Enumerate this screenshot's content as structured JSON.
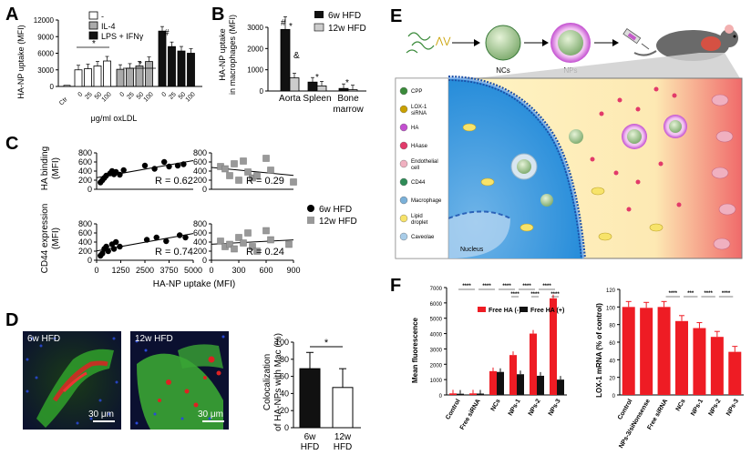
{
  "panels": {
    "A": {
      "label": "A"
    },
    "B": {
      "label": "B"
    },
    "C": {
      "label": "C"
    },
    "D": {
      "label": "D"
    },
    "E": {
      "label": "E"
    },
    "F": {
      "label": "F"
    }
  },
  "chart_data": [
    {
      "id": "A",
      "type": "bar",
      "ylabel": "HA-NP uptake (MFI)",
      "xlabel": "μg/ml oxLDL",
      "ylim": [
        0,
        12000
      ],
      "yticks": [
        "0",
        "3000",
        "6000",
        "9000",
        "12000"
      ],
      "ctr_label": "Ctr",
      "groups": [
        {
          "name": "-",
          "color": "#ffffff",
          "x": [
            "0",
            "25",
            "50",
            "100"
          ],
          "values": [
            3000,
            3200,
            3700,
            4600
          ]
        },
        {
          "name": "IL-4",
          "color": "#aaaaaa",
          "x": [
            "0",
            "25",
            "50",
            "100"
          ],
          "values": [
            3100,
            3300,
            3700,
            4500
          ]
        },
        {
          "name": "LPS + IFNγ",
          "color": "#111111",
          "x": [
            "0",
            "25",
            "50",
            "100"
          ],
          "values": [
            10000,
            7200,
            6400,
            6000
          ]
        }
      ],
      "ctr_value": 200,
      "annotations": [
        "*",
        "*",
        "#"
      ]
    },
    {
      "id": "B",
      "type": "bar",
      "ylabel": "HA-NP uptake in macrophages (MFI)",
      "ylim": [
        0,
        3000
      ],
      "yticks": [
        "0",
        "1000",
        "2000",
        "3000"
      ],
      "categories": [
        "Aorta",
        "Spleen",
        "Bone marrow"
      ],
      "series": [
        {
          "name": "6w HFD",
          "color": "#111111",
          "values": [
            2900,
            420,
            120
          ]
        },
        {
          "name": "12w HFD",
          "color": "#cccccc",
          "values": [
            620,
            240,
            60
          ]
        }
      ],
      "annotations": [
        "#",
        "*",
        "&",
        "*",
        "*"
      ]
    },
    {
      "id": "C",
      "type": "scatter",
      "ylabels": [
        "HA binding (MFI)",
        "CD44 expression (MFI)"
      ],
      "xlabel": "HA-NP uptake (MFI)",
      "yticks": [
        "0",
        "200",
        "400",
        "600",
        "800"
      ],
      "xticks_6w": [
        "0",
        "1250",
        "2500",
        "3750",
        "5000"
      ],
      "xticks_12w": [
        "0",
        "300",
        "600",
        "900"
      ],
      "series": [
        {
          "name": "6w HFD",
          "marker": "circle",
          "color": "#000000"
        },
        {
          "name": "12w HFD",
          "marker": "square",
          "color": "#999999"
        }
      ],
      "r_values": [
        "R = 0.62",
        "R = 0.29",
        "R = 0.74",
        "R = 0.24"
      ],
      "points_6w_top": [
        [
          200,
          150
        ],
        [
          300,
          200
        ],
        [
          400,
          250
        ],
        [
          500,
          300
        ],
        [
          700,
          350
        ],
        [
          800,
          400
        ],
        [
          900,
          330
        ],
        [
          1000,
          380
        ],
        [
          1200,
          320
        ],
        [
          1400,
          420
        ],
        [
          2500,
          520
        ],
        [
          3000,
          450
        ],
        [
          3500,
          600
        ],
        [
          3750,
          500
        ],
        [
          4200,
          520
        ],
        [
          4500,
          550
        ]
      ],
      "points_12w_top": [
        [
          100,
          500
        ],
        [
          150,
          450
        ],
        [
          200,
          300
        ],
        [
          250,
          560
        ],
        [
          300,
          200
        ],
        [
          350,
          620
        ],
        [
          400,
          380
        ],
        [
          450,
          250
        ],
        [
          500,
          300
        ],
        [
          600,
          680
        ],
        [
          650,
          420
        ],
        [
          900,
          160
        ]
      ],
      "points_6w_bot": [
        [
          200,
          100
        ],
        [
          300,
          150
        ],
        [
          400,
          250
        ],
        [
          500,
          300
        ],
        [
          600,
          200
        ],
        [
          800,
          350
        ],
        [
          900,
          250
        ],
        [
          1000,
          400
        ],
        [
          1200,
          300
        ],
        [
          2600,
          450
        ],
        [
          3100,
          500
        ],
        [
          3600,
          420
        ],
        [
          4300,
          550
        ],
        [
          4600,
          500
        ]
      ],
      "points_12w_bot": [
        [
          100,
          420
        ],
        [
          150,
          300
        ],
        [
          200,
          350
        ],
        [
          250,
          250
        ],
        [
          300,
          500
        ],
        [
          350,
          380
        ],
        [
          400,
          600
        ],
        [
          450,
          300
        ],
        [
          500,
          200
        ],
        [
          600,
          650
        ],
        [
          650,
          450
        ],
        [
          850,
          350
        ]
      ]
    },
    {
      "id": "D",
      "type": "bar",
      "ylabel": "Colocalization of HA-NPs with Mac (%)",
      "ylim": [
        0,
        100
      ],
      "yticks": [
        "0",
        "20",
        "40",
        "60",
        "80",
        "100"
      ],
      "categories": [
        "6w HFD",
        "12w HFD"
      ],
      "values": [
        69,
        47
      ],
      "significance": "*"
    },
    {
      "id": "F1",
      "type": "bar",
      "ylabel": "Mean fluorescence",
      "ylim": [
        0,
        7000
      ],
      "yticks": [
        "0",
        "1000",
        "2000",
        "3000",
        "4000",
        "5000",
        "6000",
        "7000"
      ],
      "categories": [
        "Control",
        "Free siRNA",
        "NCs",
        "NPs-1",
        "NPs-2",
        "NPs-3"
      ],
      "series": [
        {
          "name": "Free HA (-)",
          "color": "#ee1c24",
          "values": [
            100,
            100,
            1550,
            2600,
            4000,
            6300
          ]
        },
        {
          "name": "Free HA (+)",
          "color": "#111111",
          "values": [
            80,
            90,
            1500,
            1350,
            1250,
            1000
          ]
        }
      ],
      "significance": [
        "****",
        "****",
        "****",
        "****",
        "****",
        "****",
        "****",
        "****"
      ]
    },
    {
      "id": "F2",
      "type": "bar",
      "ylabel": "LOX-1 mRNA (% of control)",
      "ylim": [
        0,
        120
      ],
      "yticks": [
        "0",
        "20",
        "40",
        "60",
        "80",
        "100",
        "120"
      ],
      "categories": [
        "Control",
        "NPs-3/siNonsense",
        "Free siRNA",
        "NCs",
        "NPs-1",
        "NPs-2",
        "NPs-3"
      ],
      "values": [
        100,
        99,
        100,
        84,
        76,
        66,
        49
      ],
      "color": "#ee1c24",
      "significance": [
        "****",
        "***",
        "****",
        "****"
      ]
    }
  ],
  "panelD": {
    "images": [
      {
        "label": "6w HFD",
        "scale": "30 μm"
      },
      {
        "label": "12w HFD",
        "scale": "30 μm"
      }
    ]
  },
  "panelE": {
    "stage_labels": [
      "NCs",
      "NPs"
    ],
    "legend": [
      "CPP",
      "LOX-1 siRNA",
      "HA",
      "HAase",
      "Endothelial cell",
      "CD44",
      "Macrophage",
      "Lipid droplet",
      "Caveolae"
    ],
    "nucleus": "Nucleus"
  }
}
